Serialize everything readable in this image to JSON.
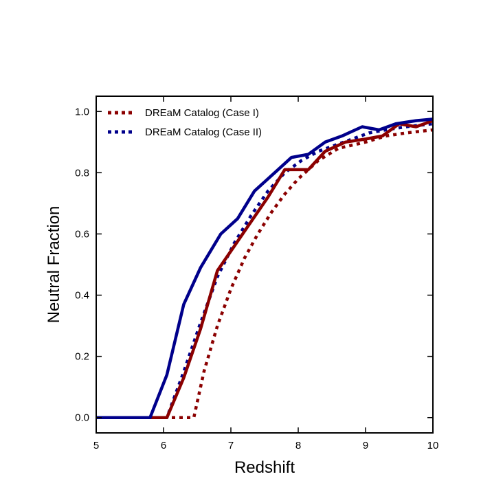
{
  "chart_data": {
    "type": "line",
    "title": "",
    "xlabel": "Redshift",
    "ylabel": "Neutral Fraction",
    "xlim": [
      5,
      10
    ],
    "ylim": [
      -0.05,
      1.05
    ],
    "xticks": [
      "5",
      "6",
      "7",
      "8",
      "9",
      "10"
    ],
    "yticks": [
      "0.0",
      "0.2",
      "0.4",
      "0.6",
      "0.8",
      "1.0"
    ],
    "grid": false,
    "legend_placement": "top-left",
    "series": [
      {
        "name": "DREaM Catalog (Case I)",
        "color": "#8b0000",
        "style": "dotted",
        "legend": true,
        "x": [
          5.0,
          5.3,
          5.6,
          5.8,
          6.05,
          6.3,
          6.45,
          6.6,
          6.8,
          7.0,
          7.2,
          7.4,
          7.6,
          7.8,
          8.0,
          8.3,
          8.6,
          9.0,
          9.3,
          9.6,
          10.0
        ],
        "y": [
          0.0,
          0.0,
          0.0,
          0.0,
          0.0,
          0.0,
          0.0,
          0.15,
          0.3,
          0.42,
          0.52,
          0.6,
          0.67,
          0.73,
          0.78,
          0.84,
          0.88,
          0.9,
          0.92,
          0.93,
          0.94
        ]
      },
      {
        "name": "DREaM Catalog (Case II)",
        "color": "#00008b",
        "style": "dotted",
        "legend": true,
        "x": [
          5.0,
          5.3,
          5.6,
          5.8,
          6.05,
          6.3,
          6.55,
          6.8,
          7.05,
          7.3,
          7.55,
          7.8,
          8.05,
          8.3,
          8.55,
          8.8,
          9.05,
          9.3,
          9.6,
          10.0
        ],
        "y": [
          0.0,
          0.0,
          0.0,
          0.0,
          0.0,
          0.15,
          0.31,
          0.46,
          0.57,
          0.66,
          0.74,
          0.8,
          0.84,
          0.87,
          0.89,
          0.91,
          0.93,
          0.94,
          0.95,
          0.96
        ]
      },
      {
        "color": "#8b0000",
        "style": "solid",
        "legend": false,
        "x": [
          5.0,
          5.3,
          5.6,
          5.8,
          6.05,
          6.3,
          6.55,
          6.8,
          7.05,
          7.3,
          7.55,
          7.8,
          8.15,
          8.4,
          8.7,
          9.0,
          9.25,
          9.5,
          9.75,
          10.0
        ],
        "y": [
          0.0,
          0.0,
          0.0,
          0.0,
          0.0,
          0.13,
          0.29,
          0.48,
          0.56,
          0.64,
          0.72,
          0.81,
          0.81,
          0.87,
          0.9,
          0.91,
          0.92,
          0.96,
          0.95,
          0.97
        ]
      },
      {
        "color": "#00008b",
        "style": "solid",
        "legend": false,
        "x": [
          5.0,
          5.3,
          5.6,
          5.8,
          6.05,
          6.3,
          6.55,
          6.85,
          7.1,
          7.35,
          7.65,
          7.9,
          8.15,
          8.4,
          8.65,
          8.95,
          9.2,
          9.45,
          9.75,
          10.0
        ],
        "y": [
          0.0,
          0.0,
          0.0,
          0.0,
          0.14,
          0.37,
          0.49,
          0.6,
          0.65,
          0.74,
          0.8,
          0.85,
          0.86,
          0.9,
          0.92,
          0.95,
          0.94,
          0.96,
          0.97,
          0.975
        ]
      }
    ]
  }
}
